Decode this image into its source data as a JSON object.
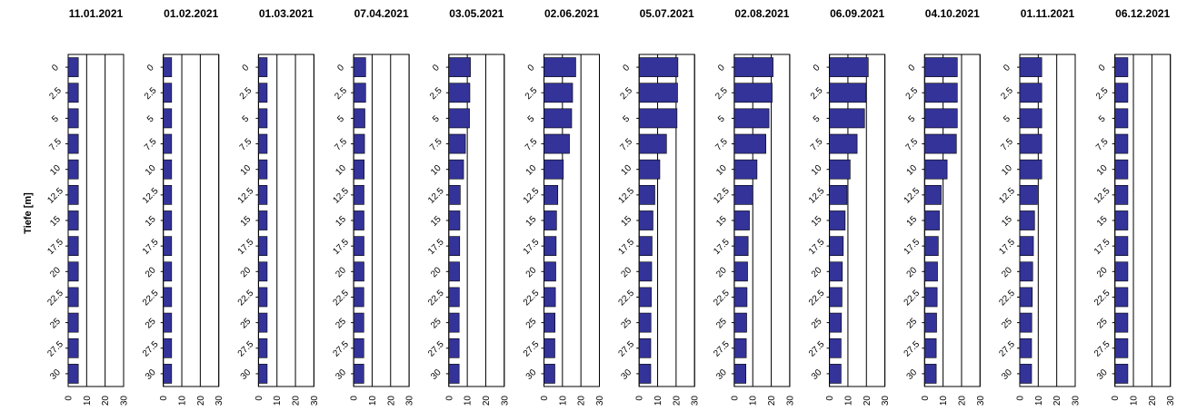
{
  "chart_data": {
    "type": "bar",
    "orientation": "horizontal",
    "ylabel": "Tiefe [m]",
    "depths": [
      "0",
      "2.5",
      "5",
      "7.5",
      "10",
      "12.5",
      "15",
      "17.5",
      "20",
      "22.5",
      "25",
      "27.5",
      "30"
    ],
    "x_ticks": [
      "0",
      "10",
      "20",
      "30"
    ],
    "xlim": [
      0,
      30
    ],
    "bar_color": "#333399",
    "panels": [
      {
        "title": "11.01.2021",
        "values": [
          5.5,
          5.5,
          5.5,
          5.5,
          5.5,
          5.5,
          5.5,
          5.5,
          5.5,
          5.5,
          5.5,
          5.5,
          5.5
        ]
      },
      {
        "title": "01.02.2021",
        "values": [
          4.5,
          4.5,
          4.5,
          4.5,
          4.5,
          4.5,
          4.5,
          4.5,
          4.5,
          4.5,
          4.5,
          4.5,
          4.5
        ]
      },
      {
        "title": "01.03.2021",
        "values": [
          4.7,
          4.7,
          4.7,
          4.7,
          4.7,
          4.7,
          4.7,
          4.7,
          4.7,
          4.7,
          4.7,
          4.7,
          4.7
        ]
      },
      {
        "title": "07.04.2021",
        "values": [
          6.5,
          6.5,
          6.1,
          5.9,
          5.7,
          5.6,
          5.6,
          5.6,
          5.6,
          5.5,
          5.5,
          5.5,
          5.5
        ]
      },
      {
        "title": "03.05.2021",
        "values": [
          11.7,
          11.4,
          11.2,
          9.0,
          8.0,
          6.2,
          6.0,
          5.9,
          5.8,
          5.7,
          5.6,
          5.6,
          5.6
        ]
      },
      {
        "title": "02.06.2021",
        "values": [
          17.2,
          15.5,
          15.0,
          13.8,
          10.5,
          7.5,
          6.8,
          6.6,
          6.4,
          6.2,
          6.0,
          5.9,
          5.9
        ]
      },
      {
        "title": "05.07.2021",
        "values": [
          21.0,
          20.8,
          20.5,
          14.8,
          11.2,
          8.5,
          7.5,
          7.0,
          6.8,
          6.6,
          6.4,
          6.3,
          6.3
        ]
      },
      {
        "title": "02.08.2021",
        "values": [
          21.0,
          20.5,
          18.8,
          17.1,
          12.3,
          10.0,
          8.2,
          7.5,
          7.2,
          6.9,
          6.7,
          6.5,
          6.3
        ]
      },
      {
        "title": "06.09.2021",
        "values": [
          21.0,
          19.8,
          19.0,
          15.0,
          11.2,
          9.5,
          8.5,
          7.5,
          7.0,
          6.8,
          6.5,
          6.3,
          6.3
        ]
      },
      {
        "title": "04.10.2021",
        "values": [
          17.7,
          17.7,
          17.7,
          17.2,
          12.2,
          9.0,
          8.0,
          7.4,
          7.0,
          6.8,
          6.5,
          6.3,
          6.3
        ]
      },
      {
        "title": "01.11.2021",
        "values": [
          11.9,
          11.9,
          11.9,
          11.9,
          11.9,
          9.5,
          8.0,
          7.4,
          7.0,
          6.8,
          6.5,
          6.4,
          6.4
        ]
      },
      {
        "title": "06.12.2021",
        "values": [
          7.0,
          7.0,
          7.0,
          7.0,
          7.0,
          7.0,
          7.0,
          7.0,
          7.0,
          7.0,
          7.0,
          7.0,
          7.0
        ]
      }
    ]
  }
}
